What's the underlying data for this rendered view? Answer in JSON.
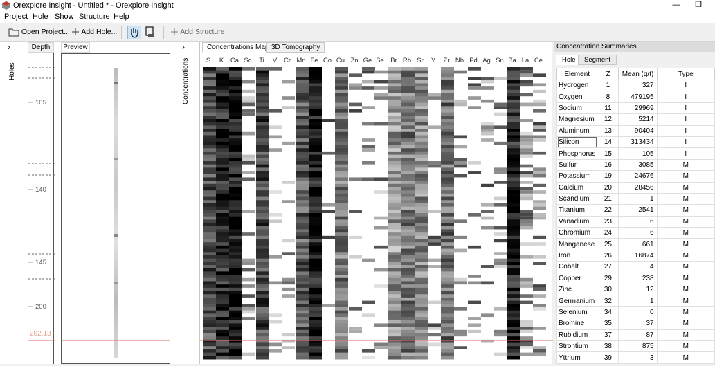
{
  "window": {
    "title": "Orexplore Insight - Untitled * - Orexplore Insight"
  },
  "menu": [
    "Project",
    "Hole",
    "Show",
    "Structure",
    "Help"
  ],
  "toolbar": {
    "open_project": "Open Project...",
    "add_hole": "Add Hole...",
    "add_structure": "Add Structure"
  },
  "left_panel": {
    "holes_label": "Holes",
    "depth_header": "Depth",
    "preview_header": "Preview",
    "depth_ticks": [
      "105",
      "140",
      "145",
      "200"
    ],
    "current_depth": "202.13"
  },
  "concentrations": {
    "side_label": "Concentrations",
    "tabs": [
      "Concentrations Map",
      "3D Tomography"
    ],
    "elements": [
      "S",
      "K",
      "Ca",
      "Sc",
      "Ti",
      "V",
      "Cr",
      "Mn",
      "Fe",
      "Co",
      "Cu",
      "Zn",
      "Ge",
      "Se",
      "Br",
      "Rb",
      "Sr",
      "Y",
      "Zr",
      "Nb",
      "Pd",
      "Ag",
      "Sn",
      "Ba",
      "La",
      "Ce"
    ]
  },
  "summary": {
    "title": "Concentration Summaries",
    "tabs": [
      "Hole",
      "Segment"
    ],
    "columns": [
      "Element",
      "Z",
      "Mean (g/t)",
      "Type"
    ],
    "rows": [
      [
        "Hydrogen",
        "1",
        "327",
        "I"
      ],
      [
        "Oxygen",
        "8",
        "479195",
        "I"
      ],
      [
        "Sodium",
        "11",
        "29969",
        "I"
      ],
      [
        "Magnesium",
        "12",
        "5214",
        "I"
      ],
      [
        "Aluminum",
        "13",
        "90404",
        "I"
      ],
      [
        "Silicon",
        "14",
        "313434",
        "I"
      ],
      [
        "Phosphorus",
        "15",
        "105",
        "I"
      ],
      [
        "Sulfur",
        "16",
        "3085",
        "M"
      ],
      [
        "Potassium",
        "19",
        "24676",
        "M"
      ],
      [
        "Calcium",
        "20",
        "28456",
        "M"
      ],
      [
        "Scandium",
        "21",
        "1",
        "M"
      ],
      [
        "Titanium",
        "22",
        "2541",
        "M"
      ],
      [
        "Vanadium",
        "23",
        "6",
        "M"
      ],
      [
        "Chromium",
        "24",
        "6",
        "M"
      ],
      [
        "Manganese",
        "25",
        "661",
        "M"
      ],
      [
        "Iron",
        "26",
        "16874",
        "M"
      ],
      [
        "Cobalt",
        "27",
        "4",
        "M"
      ],
      [
        "Copper",
        "29",
        "238",
        "M"
      ],
      [
        "Zinc",
        "30",
        "12",
        "M"
      ],
      [
        "Germanium",
        "32",
        "1",
        "M"
      ],
      [
        "Selenium",
        "34",
        "0",
        "M"
      ],
      [
        "Bromine",
        "35",
        "37",
        "M"
      ],
      [
        "Rubidium",
        "37",
        "87",
        "M"
      ],
      [
        "Strontium",
        "38",
        "875",
        "M"
      ],
      [
        "Yttrium",
        "39",
        "3",
        "M"
      ]
    ]
  },
  "colors": {
    "accent": "#cce4f7",
    "depth_marker": "#e07060"
  }
}
